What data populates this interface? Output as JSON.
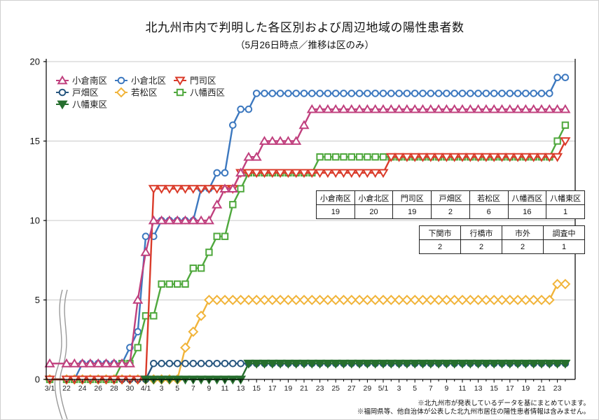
{
  "title": "北九州市内で判明した各区別および周辺地域の陽性患者数",
  "subtitle": "（5月26日時点／推移は区のみ）",
  "footnotes": [
    "※北九州市が発表しているデータを基にまとめています。",
    "※福岡県等、他自治体が公表した北九州市居住の陽性患者情報は含みません。"
  ],
  "summary_tables": [
    {
      "headers": [
        "小倉南区",
        "小倉北区",
        "門司区",
        "戸畑区",
        "若松区",
        "八幡西区",
        "八幡東区"
      ],
      "values": [
        "19",
        "20",
        "19",
        "2",
        "6",
        "16",
        "1"
      ]
    },
    {
      "headers": [
        "下関市",
        "行橋市",
        "市外",
        "調査中"
      ],
      "values": [
        "2",
        "2",
        "2",
        "1"
      ]
    }
  ],
  "chart_data": {
    "type": "line",
    "title": "北九州市内で判明した各区別および周辺地域の陽性患者数",
    "subtitle": "（5月26日時点／推移は区のみ）",
    "xlabel": "",
    "ylabel": "",
    "ylim": [
      0,
      20
    ],
    "y_ticks": [
      0,
      5,
      10,
      15,
      20
    ],
    "grid": true,
    "axis_break_after_first_point": true,
    "legend_position": "upper-left",
    "x_dates": [
      "3/1",
      "3/22",
      "3/23",
      "3/24",
      "3/25",
      "3/26",
      "3/27",
      "3/28",
      "3/29",
      "3/30",
      "3/31",
      "4/1",
      "4/2",
      "4/3",
      "4/4",
      "4/5",
      "4/6",
      "4/7",
      "4/8",
      "4/9",
      "4/10",
      "4/11",
      "4/12",
      "4/13",
      "4/14",
      "4/15",
      "4/16",
      "4/17",
      "4/18",
      "4/19",
      "4/20",
      "4/21",
      "4/22",
      "4/23",
      "4/24",
      "4/25",
      "4/26",
      "4/27",
      "4/28",
      "4/29",
      "4/30",
      "5/1",
      "5/2",
      "5/3",
      "5/4",
      "5/5",
      "5/6",
      "5/7",
      "5/8",
      "5/9",
      "5/10",
      "5/11",
      "5/12",
      "5/13",
      "5/14",
      "5/15",
      "5/16",
      "5/17",
      "5/18",
      "5/19",
      "5/20",
      "5/21",
      "5/22",
      "5/23",
      "5/24"
    ],
    "series": [
      {
        "name": "小倉南区",
        "color": "#c0407e",
        "marker": "triangle-up",
        "filled": false,
        "values": [
          1,
          1,
          1,
          1,
          1,
          1,
          1,
          1,
          1,
          1,
          5,
          8,
          10,
          10,
          10,
          10,
          10,
          10,
          10,
          10,
          11,
          12,
          12,
          13,
          14,
          14,
          15,
          15,
          15,
          15,
          15,
          16,
          17,
          17,
          17,
          17,
          17,
          17,
          17,
          17,
          17,
          17,
          17,
          17,
          17,
          17,
          17,
          17,
          17,
          17,
          17,
          17,
          17,
          17,
          17,
          17,
          17,
          17,
          17,
          17,
          17,
          17,
          17,
          17,
          17
        ]
      },
      {
        "name": "小倉北区",
        "color": "#3c78bf",
        "marker": "circle",
        "filled": false,
        "values": [
          0,
          0,
          0,
          1,
          1,
          1,
          1,
          1,
          1,
          2,
          3,
          9,
          9,
          10,
          10,
          10,
          10,
          10,
          12,
          12,
          13,
          13,
          16,
          17,
          17,
          18,
          18,
          18,
          18,
          18,
          18,
          18,
          18,
          18,
          18,
          18,
          18,
          18,
          18,
          18,
          18,
          18,
          18,
          18,
          18,
          18,
          18,
          18,
          18,
          18,
          18,
          18,
          18,
          18,
          18,
          18,
          18,
          18,
          18,
          18,
          18,
          18,
          18,
          19,
          19
        ]
      },
      {
        "name": "門司区",
        "color": "#da3b2a",
        "marker": "triangle-down",
        "filled": false,
        "values": [
          0,
          0,
          0,
          0,
          0,
          0,
          0,
          0,
          0,
          0,
          0,
          0,
          12,
          12,
          12,
          12,
          12,
          12,
          12,
          12,
          12,
          12,
          12,
          13,
          13,
          13,
          13,
          13,
          13,
          13,
          13,
          13,
          13,
          13,
          13,
          13,
          13,
          13,
          13,
          13,
          13,
          13,
          14,
          14,
          14,
          14,
          14,
          14,
          14,
          14,
          14,
          14,
          14,
          14,
          14,
          14,
          14,
          14,
          14,
          14,
          14,
          14,
          14,
          14,
          15
        ]
      },
      {
        "name": "戸畑区",
        "color": "#27567f",
        "marker": "circle",
        "filled": false,
        "values": [
          0,
          0,
          0,
          0,
          0,
          0,
          0,
          0,
          0,
          0,
          0,
          0,
          1,
          1,
          1,
          1,
          1,
          1,
          1,
          1,
          1,
          1,
          1,
          1,
          1,
          1,
          1,
          1,
          1,
          1,
          1,
          1,
          1,
          1,
          1,
          1,
          1,
          1,
          1,
          1,
          1,
          1,
          1,
          1,
          1,
          1,
          1,
          1,
          1,
          1,
          1,
          1,
          1,
          1,
          1,
          1,
          1,
          1,
          1,
          1,
          1,
          1,
          1,
          1,
          1
        ]
      },
      {
        "name": "若松区",
        "color": "#f1b43a",
        "marker": "diamond",
        "filled": false,
        "values": [
          0,
          0,
          0,
          0,
          0,
          0,
          0,
          0,
          0,
          0,
          0,
          0,
          0,
          0,
          0,
          0,
          2,
          3,
          4,
          5,
          5,
          5,
          5,
          5,
          5,
          5,
          5,
          5,
          5,
          5,
          5,
          5,
          5,
          5,
          5,
          5,
          5,
          5,
          5,
          5,
          5,
          5,
          5,
          5,
          5,
          5,
          5,
          5,
          5,
          5,
          5,
          5,
          5,
          5,
          5,
          5,
          5,
          5,
          5,
          5,
          5,
          5,
          5,
          6,
          6
        ]
      },
      {
        "name": "八幡西区",
        "color": "#4fa83d",
        "marker": "square",
        "filled": false,
        "values": [
          0,
          0,
          0,
          0,
          0,
          0,
          0,
          0,
          1,
          1,
          2,
          4,
          4,
          6,
          6,
          6,
          6,
          7,
          7,
          8,
          9,
          9,
          11,
          12,
          13,
          13,
          13,
          13,
          13,
          13,
          13,
          13,
          13,
          14,
          14,
          14,
          14,
          14,
          14,
          14,
          14,
          14,
          14,
          14,
          14,
          14,
          14,
          14,
          14,
          14,
          14,
          14,
          14,
          14,
          14,
          14,
          14,
          14,
          14,
          14,
          14,
          14,
          14,
          15,
          16
        ]
      },
      {
        "name": "八幡東区",
        "color": "#266e2e",
        "marker": "triangle-down",
        "filled": true,
        "values": [
          null,
          null,
          null,
          null,
          null,
          null,
          null,
          null,
          null,
          null,
          null,
          0,
          0,
          0,
          0,
          0,
          0,
          0,
          0,
          0,
          0,
          0,
          0,
          0,
          1,
          1,
          1,
          1,
          1,
          1,
          1,
          1,
          1,
          1,
          1,
          1,
          1,
          1,
          1,
          1,
          1,
          1,
          1,
          1,
          1,
          1,
          1,
          1,
          1,
          1,
          1,
          1,
          1,
          1,
          1,
          1,
          1,
          1,
          1,
          1,
          1,
          1,
          1,
          1,
          1
        ]
      }
    ],
    "draw_order": [
      4,
      3,
      1,
      5,
      2,
      0,
      6
    ],
    "legend_rows": [
      [
        0,
        1,
        2
      ],
      [
        3,
        4,
        5
      ],
      [
        6
      ]
    ]
  }
}
